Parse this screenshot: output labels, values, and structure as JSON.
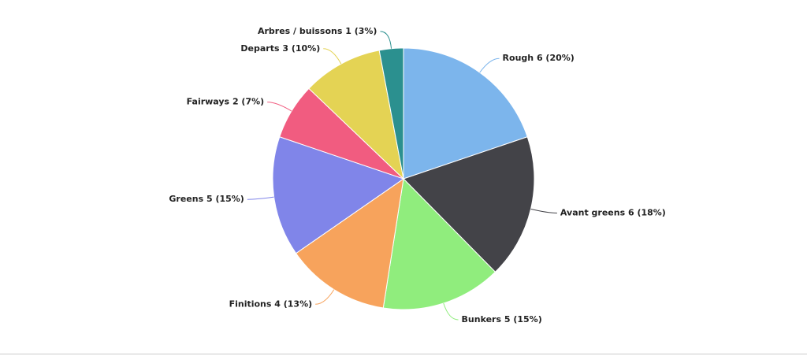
{
  "chart_data": {
    "type": "pie",
    "values": [
      20,
      18,
      15,
      13,
      15,
      7,
      10,
      3
    ],
    "value_labels": [
      "Rough 6 (20%)",
      "Avant greens 6 (18%)",
      "Bunkers 5 (15%)",
      "Finitions 4 (13%)",
      "Greens 5 (15%)",
      "Fairways 2 (7%)",
      "Departs 3 (10%)",
      "Arbres / buissons 1 (3%)"
    ],
    "colors": [
      "#7cb5ec",
      "#434348",
      "#90ed7d",
      "#f7a35c",
      "#8085e9",
      "#f15c80",
      "#e4d354",
      "#2b908f"
    ]
  }
}
